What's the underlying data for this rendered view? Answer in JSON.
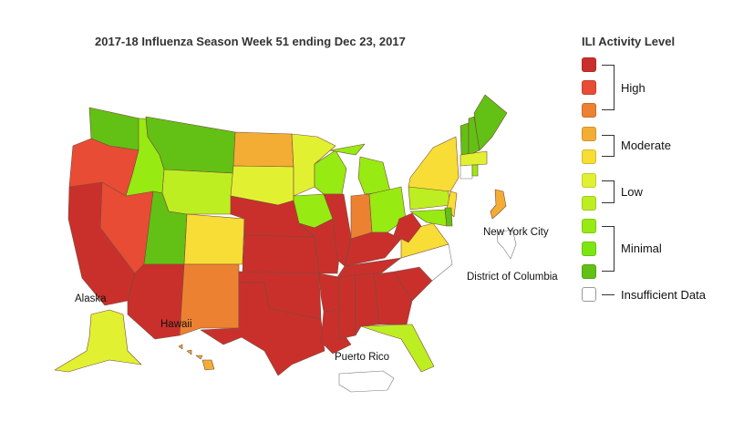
{
  "title": "2017-18 Influenza Season Week 51 ending Dec 23, 2017",
  "legend": {
    "title": "ILI Activity Level",
    "levels": [
      {
        "level": 10,
        "color": "#c9302c"
      },
      {
        "level": 9,
        "color": "#e84c35"
      },
      {
        "level": 8,
        "color": "#ed8132"
      },
      {
        "level": 7,
        "color": "#f3ad34"
      },
      {
        "level": 6,
        "color": "#f7dd35"
      },
      {
        "level": 5,
        "color": "#e1f132"
      },
      {
        "level": 4,
        "color": "#bdee22"
      },
      {
        "level": 3,
        "color": "#97ea12"
      },
      {
        "level": 2,
        "color": "#7de612"
      },
      {
        "level": 1,
        "color": "#62c114"
      }
    ],
    "groups": {
      "high": "High",
      "moderate": "Moderate",
      "low": "Low",
      "minimal": "Minimal",
      "insufficient": "Insufficient Data"
    },
    "insufficient_color": "#ffffff"
  },
  "labels": {
    "alaska": "Alaska",
    "hawaii": "Hawaii",
    "puerto_rico": "Puerto Rico",
    "nyc": "New York City",
    "dc": "District of Columbia"
  },
  "states": {
    "WA": 1,
    "OR": 9,
    "CA": 10,
    "NV": 9,
    "ID": 3,
    "MT": 1,
    "WY": 4,
    "UT": 1,
    "AZ": 10,
    "CO": 6,
    "NM": 8,
    "ND": 7,
    "SD": 5,
    "NE": 10,
    "KS": 10,
    "OK": 10,
    "TX": 10,
    "MN": 5,
    "IA": 3,
    "MO": 10,
    "AR": 10,
    "LA": 10,
    "WI": 3,
    "IL": 10,
    "MI": 3,
    "IN": 8,
    "OH": 3,
    "KY": 10,
    "TN": 10,
    "MS": 10,
    "AL": 10,
    "GA": 10,
    "SC": 10,
    "FL": 4,
    "NC": null,
    "VA": 6,
    "WV": 10,
    "PA": 4,
    "NY": 6,
    "NJ": 6,
    "MD": 3,
    "DE": 1,
    "VT": 1,
    "NH": 1,
    "ME": 1,
    "MA": 5,
    "CT": null,
    "RI": 3,
    "AK": 5,
    "HI": 7,
    "NYC": 7,
    "DC": null,
    "PR": null
  }
}
